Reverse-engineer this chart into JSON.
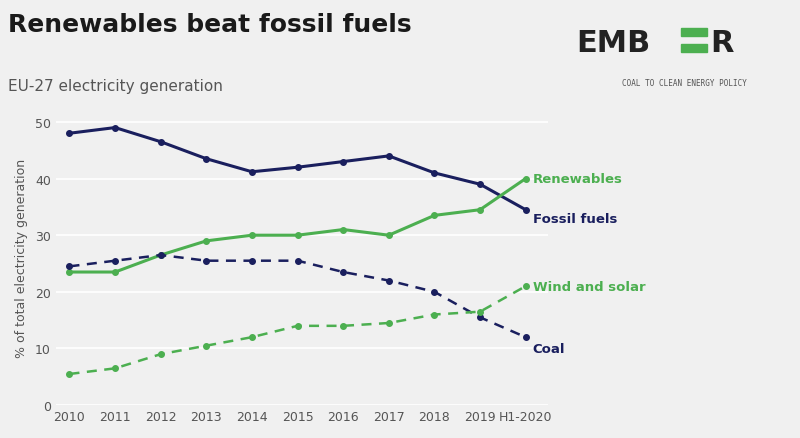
{
  "title": "Renewables beat fossil fuels",
  "subtitle": "EU-27 electricity generation",
  "ylabel": "% of total electricity generation",
  "background_color": "#f0f0f0",
  "plot_bg_color": "#f0f0f0",
  "years": [
    "2010",
    "2011",
    "2012",
    "2013",
    "2014",
    "2015",
    "2016",
    "2017",
    "2018",
    "2019",
    "H1-2020"
  ],
  "fossil_fuels": [
    48.0,
    49.0,
    46.5,
    43.5,
    41.2,
    42.0,
    43.0,
    44.0,
    41.0,
    39.0,
    34.5
  ],
  "renewables": [
    23.5,
    23.5,
    26.5,
    29.0,
    30.0,
    30.0,
    31.0,
    30.0,
    33.5,
    34.5,
    40.0
  ],
  "coal": [
    24.5,
    25.5,
    26.5,
    25.5,
    25.5,
    25.5,
    23.5,
    22.0,
    20.0,
    15.5,
    12.0
  ],
  "wind_solar": [
    5.5,
    6.5,
    9.0,
    10.5,
    12.0,
    14.0,
    14.0,
    14.5,
    16.0,
    16.5,
    21.0
  ],
  "fossil_color": "#1a1f5e",
  "renewables_color": "#4caf50",
  "coal_color": "#1a1f5e",
  "wind_solar_color": "#4caf50",
  "ylim": [
    0,
    52
  ],
  "yticks": [
    0,
    10,
    20,
    30,
    40,
    50
  ],
  "title_fontsize": 18,
  "subtitle_fontsize": 11,
  "label_fontsize": 10,
  "ember_text": "EMB=R",
  "ember_subtext": "COAL TO CLEAN ENERGY POLICY"
}
